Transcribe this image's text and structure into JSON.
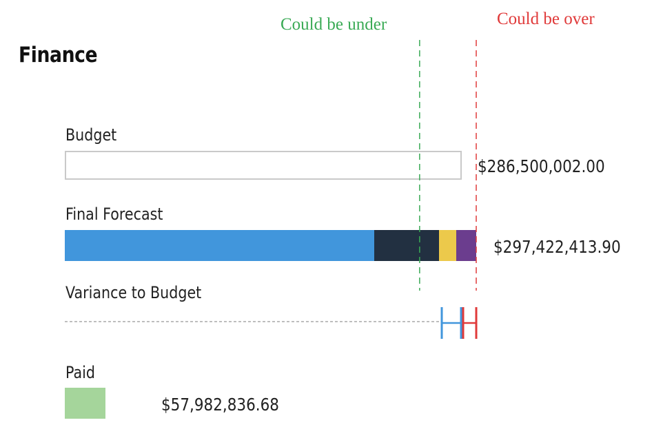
{
  "title": "Finance",
  "annotations": {
    "under": {
      "text": "Could be under",
      "color": "#3aaa55"
    },
    "over": {
      "text": "Could be over",
      "color": "#e03a3a"
    }
  },
  "rows": {
    "budget": {
      "label": "Budget",
      "value_text": "$286,500,002.00"
    },
    "forecast": {
      "label": "Final Forecast",
      "value_text": "$297,422,413.90"
    },
    "variance": {
      "label": "Variance to Budget"
    },
    "paid": {
      "label": "Paid",
      "value_text": "$57,982,836.68"
    }
  },
  "colors": {
    "segment_blue": "#4196dc",
    "segment_navy": "#223041",
    "segment_yellow": "#ecc94b",
    "segment_purple": "#6b3d8e",
    "paid_green": "#a5d59b",
    "budget_border": "#c9c9c9",
    "variance_under": "#4196dc",
    "variance_over": "#e03a3a"
  },
  "chart_data": {
    "type": "bar",
    "orientation": "horizontal",
    "categories": [
      "Budget",
      "Final Forecast",
      "Paid"
    ],
    "values": [
      286500002.0,
      297422413.9,
      57982836.68
    ],
    "forecast_segments": [
      {
        "color": "#4196dc",
        "value": 223900000
      },
      {
        "color": "#223041",
        "value": 46700000
      },
      {
        "color": "#ecc94b",
        "value": 12200000
      },
      {
        "color": "#6b3d8e",
        "value": 14622413.9
      }
    ],
    "reference_lines": [
      {
        "label": "Could be under",
        "value": 282900000,
        "color": "#3aaa55",
        "style": "dashed"
      },
      {
        "label": "Could be over",
        "value": 297422413.9,
        "color": "#e03a3a",
        "style": "dashed"
      }
    ],
    "xlim": [
      0,
      297422413.9
    ]
  }
}
